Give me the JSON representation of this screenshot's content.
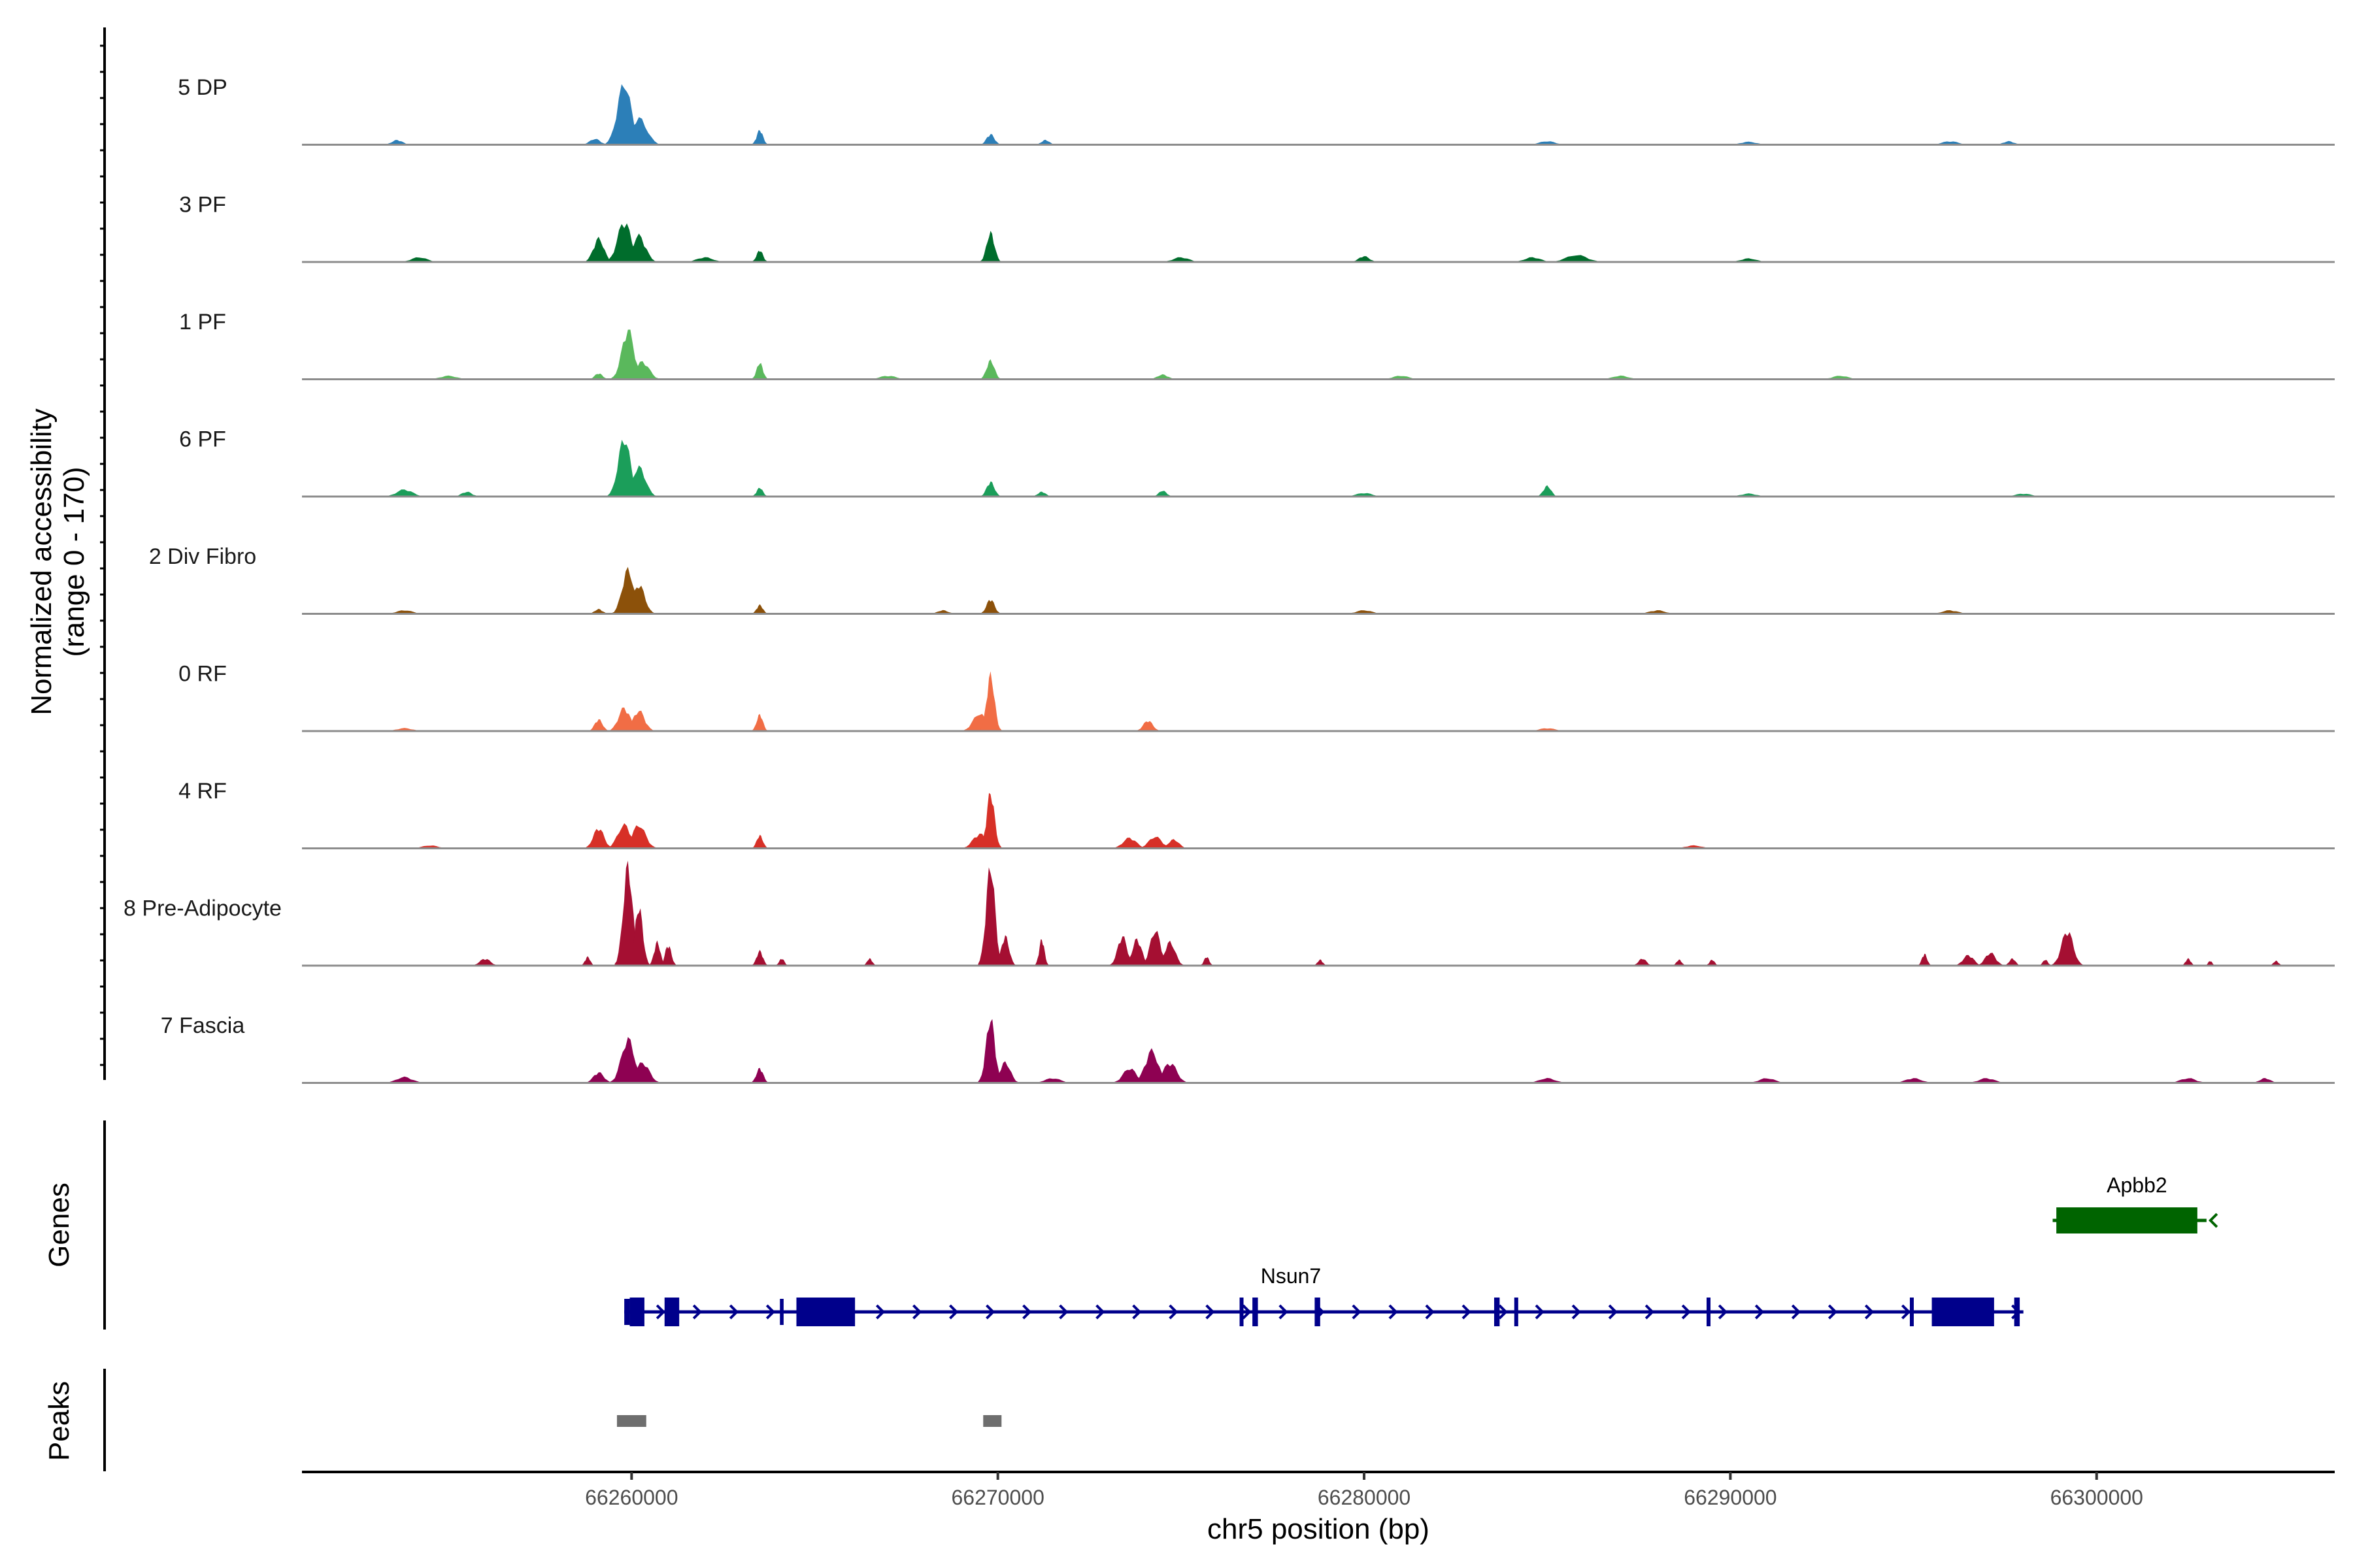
{
  "chart_data": {
    "type": "genome-coverage-tracks",
    "chromosome": "chr5",
    "xlabel": "chr5 position (bp)",
    "xlim": [
      66251000,
      66306500
    ],
    "x_ticks": [
      66260000,
      66270000,
      66280000,
      66290000,
      66300000
    ],
    "x_tick_labels": [
      "66260000",
      "66270000",
      "66280000",
      "66290000",
      "66300000"
    ],
    "coverage_ylabel_line1": "Normalized accessibility",
    "coverage_ylabel_line2": "(range 0 - 170)",
    "ylim": [
      0,
      170
    ],
    "tracks": [
      {
        "name": "5 DP",
        "color": "#2c7fb8",
        "peaks": [
          [
            66259800,
            105,
            260
          ],
          [
            66260200,
            45,
            300
          ],
          [
            66263500,
            25,
            120
          ],
          [
            66269800,
            18,
            150
          ],
          [
            66253600,
            8,
            200
          ],
          [
            66259000,
            10,
            200
          ],
          [
            66271300,
            8,
            150
          ],
          [
            66285000,
            6,
            300
          ],
          [
            66290500,
            5,
            300
          ],
          [
            66296000,
            6,
            300
          ],
          [
            66297600,
            6,
            200
          ]
        ]
      },
      {
        "name": "3 PF",
        "color": "#006d2c",
        "peaks": [
          [
            66259100,
            40,
            200
          ],
          [
            66259800,
            70,
            250
          ],
          [
            66260200,
            45,
            250
          ],
          [
            66263500,
            20,
            120
          ],
          [
            66269800,
            50,
            150
          ],
          [
            66254200,
            8,
            300
          ],
          [
            66262000,
            8,
            300
          ],
          [
            66275000,
            8,
            300
          ],
          [
            66280000,
            10,
            200
          ],
          [
            66284600,
            8,
            300
          ],
          [
            66285800,
            12,
            400
          ],
          [
            66290500,
            6,
            300
          ]
        ]
      },
      {
        "name": "1 PF",
        "color": "#5ab85c",
        "peaks": [
          [
            66259900,
            85,
            230
          ],
          [
            66260300,
            30,
            250
          ],
          [
            66263500,
            28,
            120
          ],
          [
            66269800,
            32,
            150
          ],
          [
            66259100,
            10,
            150
          ],
          [
            66255000,
            6,
            300
          ],
          [
            66267000,
            6,
            300
          ],
          [
            66274500,
            8,
            200
          ],
          [
            66281000,
            6,
            300
          ],
          [
            66287000,
            6,
            300
          ],
          [
            66293000,
            6,
            300
          ]
        ]
      },
      {
        "name": "6 PF",
        "color": "#1b9e5a",
        "peaks": [
          [
            66259800,
            100,
            230
          ],
          [
            66260200,
            50,
            250
          ],
          [
            66263500,
            15,
            120
          ],
          [
            66269800,
            25,
            150
          ],
          [
            66253800,
            12,
            300
          ],
          [
            66255500,
            8,
            200
          ],
          [
            66271200,
            8,
            150
          ],
          [
            66274500,
            10,
            150
          ],
          [
            66285000,
            18,
            150
          ],
          [
            66280000,
            6,
            300
          ],
          [
            66290500,
            5,
            300
          ],
          [
            66298000,
            5,
            300
          ]
        ]
      },
      {
        "name": "2 Div Fibro",
        "color": "#8c510a",
        "peaks": [
          [
            66259900,
            75,
            220
          ],
          [
            66260200,
            50,
            220
          ],
          [
            66263500,
            15,
            120
          ],
          [
            66269800,
            25,
            150
          ],
          [
            66259100,
            8,
            150
          ],
          [
            66253800,
            6,
            300
          ],
          [
            66268500,
            6,
            200
          ],
          [
            66280000,
            6,
            300
          ],
          [
            66288000,
            6,
            300
          ],
          [
            66296000,
            6,
            300
          ]
        ]
      },
      {
        "name": "0 RF",
        "color": "#f16d45",
        "peaks": [
          [
            66259100,
            20,
            150
          ],
          [
            66259800,
            40,
            220
          ],
          [
            66260200,
            35,
            220
          ],
          [
            66263500,
            28,
            120
          ],
          [
            66269500,
            30,
            250
          ],
          [
            66269800,
            95,
            150
          ],
          [
            66274100,
            18,
            180
          ],
          [
            66253800,
            5,
            300
          ],
          [
            66285000,
            5,
            300
          ]
        ]
      },
      {
        "name": "4 RF",
        "color": "#d73027",
        "peaks": [
          [
            66259100,
            35,
            200
          ],
          [
            66259800,
            40,
            250
          ],
          [
            66260200,
            40,
            250
          ],
          [
            66263500,
            22,
            120
          ],
          [
            66269800,
            95,
            150
          ],
          [
            66269500,
            25,
            250
          ],
          [
            66273600,
            18,
            250
          ],
          [
            66274300,
            20,
            250
          ],
          [
            66274800,
            15,
            200
          ],
          [
            66254500,
            5,
            300
          ],
          [
            66289000,
            5,
            300
          ]
        ]
      },
      {
        "name": "8 Pre-Adipocyte",
        "color": "#a50f32",
        "peaks": [
          [
            66259900,
            170,
            180
          ],
          [
            66260200,
            100,
            150
          ],
          [
            66260700,
            40,
            120
          ],
          [
            66261000,
            35,
            120
          ],
          [
            66263500,
            25,
            120
          ],
          [
            66264100,
            12,
            100
          ],
          [
            66266500,
            12,
            100
          ],
          [
            66269800,
            170,
            170
          ],
          [
            66270200,
            50,
            150
          ],
          [
            66271200,
            45,
            100
          ],
          [
            66273400,
            50,
            180
          ],
          [
            66273800,
            45,
            180
          ],
          [
            66274300,
            60,
            200
          ],
          [
            66274700,
            40,
            200
          ],
          [
            66275700,
            15,
            100
          ],
          [
            66258800,
            15,
            100
          ],
          [
            66256000,
            12,
            200
          ],
          [
            66278800,
            10,
            100
          ],
          [
            66287600,
            12,
            150
          ],
          [
            66288600,
            10,
            100
          ],
          [
            66289500,
            10,
            100
          ],
          [
            66295300,
            20,
            100
          ],
          [
            66296500,
            18,
            200
          ],
          [
            66297100,
            22,
            200
          ],
          [
            66297700,
            12,
            120
          ],
          [
            66298600,
            10,
            100
          ],
          [
            66299000,
            15,
            80
          ],
          [
            66299200,
            60,
            220
          ],
          [
            66302500,
            12,
            100
          ],
          [
            66303100,
            8,
            80
          ],
          [
            66304900,
            8,
            100
          ]
        ]
      },
      {
        "name": "7 Fascia",
        "color": "#8e0152",
        "peaks": [
          [
            66259900,
            75,
            250
          ],
          [
            66260300,
            35,
            250
          ],
          [
            66259100,
            18,
            200
          ],
          [
            66263500,
            25,
            130
          ],
          [
            66269800,
            110,
            170
          ],
          [
            66270200,
            35,
            200
          ],
          [
            66273600,
            25,
            250
          ],
          [
            66274200,
            55,
            250
          ],
          [
            66274700,
            35,
            250
          ],
          [
            66253800,
            10,
            300
          ],
          [
            66271500,
            8,
            300
          ],
          [
            66285000,
            8,
            300
          ],
          [
            66291000,
            8,
            300
          ],
          [
            66295000,
            8,
            300
          ],
          [
            66297000,
            8,
            300
          ],
          [
            66302500,
            8,
            300
          ],
          [
            66304600,
            8,
            200
          ]
        ]
      }
    ],
    "genes_label": "Genes",
    "genes": [
      {
        "name": "Nsun7",
        "strand": "+",
        "color": "#00008b",
        "start": 66259800,
        "end": 66298000,
        "exons": [
          [
            66259950,
            66260350
          ],
          [
            66260900,
            66261300
          ],
          [
            66264500,
            66266100
          ],
          [
            66276600,
            66276700
          ],
          [
            66276950,
            66277100
          ],
          [
            66278650,
            66278800
          ],
          [
            66283550,
            66283700
          ],
          [
            66284100,
            66284200
          ],
          [
            66289350,
            66289450
          ],
          [
            66294900,
            66295000
          ],
          [
            66295500,
            66297200
          ],
          [
            66297750,
            66297900
          ]
        ],
        "utrs": [
          [
            66259800,
            66259950
          ],
          [
            66264050,
            66264150
          ]
        ]
      },
      {
        "name": "Apbb2",
        "strand": "-",
        "color": "#006400",
        "start": 66298800,
        "end": 66303000,
        "exons": [
          [
            66298900,
            66302750
          ]
        ],
        "utrs": []
      }
    ],
    "peaks_label": "Peaks",
    "peak_regions": [
      [
        66259600,
        66260400
      ],
      [
        66269600,
        66270100
      ]
    ]
  }
}
